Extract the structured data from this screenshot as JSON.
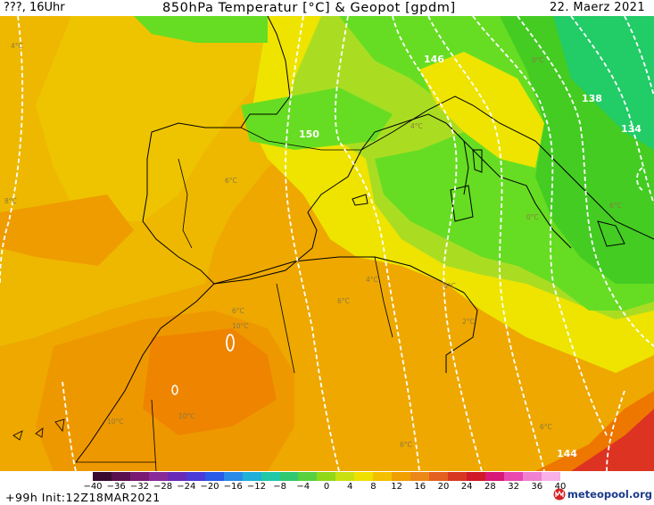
{
  "header": {
    "run": "???, 16Uhr",
    "title": "850hPa Temperatur [°C] & Geopot [gpdm]",
    "date": "22. Maerz 2021"
  },
  "contour_labels": {
    "geopot": [
      "146",
      "138",
      "150",
      "134",
      "144"
    ],
    "temperature": [
      "4°C",
      "4°C",
      "0°C",
      "0°C",
      "8°C",
      "6°C",
      "4°C",
      "0°C",
      "2°C",
      "6°C",
      "6°C",
      "10°C",
      "6°C",
      "10°C",
      "10°C",
      "6°C",
      "6°C"
    ]
  },
  "legend": {
    "ticks": [
      "-40",
      "-36",
      "-32",
      "-28",
      "-24",
      "-20",
      "-16",
      "-12",
      "-8",
      "-4",
      "0",
      "4",
      "8",
      "12",
      "16",
      "20",
      "24",
      "28",
      "32",
      "36",
      "40"
    ],
    "colors": [
      "#3a0a30",
      "#5a0f4e",
      "#7a1a72",
      "#8a2a98",
      "#6a2ab8",
      "#4a3ad8",
      "#2a5ae8",
      "#2a8ae8",
      "#20b0d8",
      "#20c8a8",
      "#30c870",
      "#58d040",
      "#90d818",
      "#c8e010",
      "#f0e000",
      "#f4c000",
      "#f0a000",
      "#ec8818",
      "#e46020",
      "#d83820",
      "#d01828",
      "#d81878",
      "#e848b0",
      "#f080d0",
      "#f8b0e8"
    ]
  },
  "footer": {
    "init": "+99h  Init:12Z18MAR2021",
    "brand": "meteopool.org"
  },
  "colors": {
    "green": "#66dd22",
    "green_dark": "#44cc22",
    "teal": "#22cc66",
    "yellow": "#eeee00",
    "yellow_orange": "#eecc00",
    "orange": "#eeaa00",
    "orange_deep": "#ee8800",
    "red": "#dd3322"
  }
}
